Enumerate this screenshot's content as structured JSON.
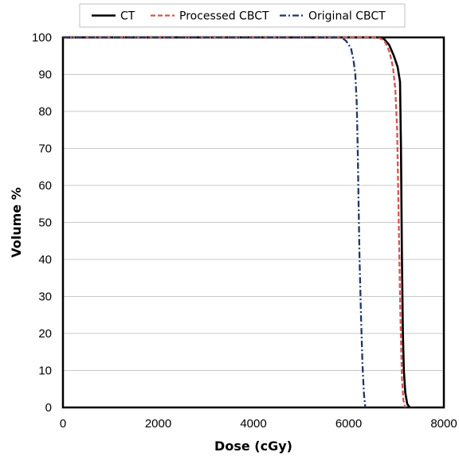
{
  "chart_data": {
    "type": "line",
    "title": "",
    "xlabel": "Dose (cGy)",
    "ylabel": "Volume %",
    "xlim": [
      0,
      8000
    ],
    "ylim": [
      0,
      100
    ],
    "xticks": [
      0,
      2000,
      4000,
      6000,
      8000
    ],
    "yticks": [
      0,
      10,
      20,
      30,
      40,
      50,
      60,
      70,
      80,
      90,
      100
    ],
    "grid": "horizontal",
    "legend": "top",
    "series": [
      {
        "name": "CT",
        "color": "#000000",
        "dash": "solid",
        "points": [
          [
            0,
            100
          ],
          [
            6650,
            100
          ],
          [
            6750,
            99.5
          ],
          [
            6850,
            98
          ],
          [
            6950,
            95
          ],
          [
            7030,
            92
          ],
          [
            7080,
            88
          ],
          [
            7100,
            70
          ],
          [
            7120,
            40
          ],
          [
            7140,
            20
          ],
          [
            7160,
            10
          ],
          [
            7190,
            4
          ],
          [
            7230,
            1
          ],
          [
            7280,
            0
          ]
        ]
      },
      {
        "name": "Processed CBCT",
        "color": "#d9534f",
        "dash": "dashed",
        "points": [
          [
            0,
            100
          ],
          [
            6600,
            100
          ],
          [
            6700,
            99.5
          ],
          [
            6780,
            98.5
          ],
          [
            6860,
            96
          ],
          [
            6930,
            92
          ],
          [
            6980,
            86
          ],
          [
            7020,
            75
          ],
          [
            7040,
            60
          ],
          [
            7060,
            45
          ],
          [
            7080,
            30
          ],
          [
            7100,
            18
          ],
          [
            7120,
            8
          ],
          [
            7150,
            2
          ],
          [
            7190,
            0
          ]
        ]
      },
      {
        "name": "Original CBCT",
        "color": "#1f3864",
        "dash": "dashdot",
        "points": [
          [
            0,
            100
          ],
          [
            5850,
            100
          ],
          [
            5950,
            99
          ],
          [
            6050,
            97
          ],
          [
            6100,
            94
          ],
          [
            6140,
            90
          ],
          [
            6170,
            82
          ],
          [
            6190,
            70
          ],
          [
            6210,
            55
          ],
          [
            6230,
            40
          ],
          [
            6260,
            25
          ],
          [
            6290,
            12
          ],
          [
            6320,
            4
          ],
          [
            6350,
            0
          ]
        ]
      }
    ]
  }
}
